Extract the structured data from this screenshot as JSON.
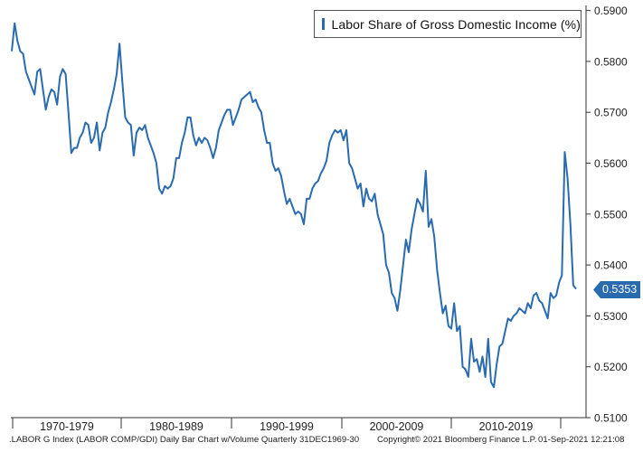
{
  "chart_data": {
    "type": "line",
    "series": [
      {
        "name": "Labor Share of Gross Domestic Income (%)",
        "color": "#2a6bb0",
        "values": [
          0.582,
          0.5875,
          0.584,
          0.582,
          0.5815,
          0.578,
          0.5765,
          0.575,
          0.5735,
          0.578,
          0.5785,
          0.5745,
          0.5705,
          0.573,
          0.5745,
          0.574,
          0.5715,
          0.577,
          0.5785,
          0.5775,
          0.57,
          0.562,
          0.563,
          0.563,
          0.565,
          0.566,
          0.568,
          0.5675,
          0.564,
          0.565,
          0.568,
          0.5625,
          0.566,
          0.567,
          0.57,
          0.572,
          0.5745,
          0.5775,
          0.5835,
          0.576,
          0.569,
          0.568,
          0.5675,
          0.5615,
          0.566,
          0.567,
          0.5665,
          0.5675,
          0.565,
          0.5635,
          0.562,
          0.56,
          0.555,
          0.554,
          0.5555,
          0.555,
          0.5555,
          0.557,
          0.561,
          0.561,
          0.564,
          0.566,
          0.569,
          0.569,
          0.5655,
          0.5635,
          0.565,
          0.564,
          0.565,
          0.5645,
          0.563,
          0.561,
          0.563,
          0.5665,
          0.568,
          0.5695,
          0.5705,
          0.5705,
          0.5675,
          0.569,
          0.5705,
          0.5725,
          0.573,
          0.5735,
          0.574,
          0.572,
          0.5725,
          0.571,
          0.57,
          0.5665,
          0.564,
          0.564,
          0.56,
          0.5585,
          0.559,
          0.5575,
          0.5545,
          0.552,
          0.553,
          0.5515,
          0.55,
          0.5505,
          0.55,
          0.548,
          0.553,
          0.553,
          0.555,
          0.556,
          0.5565,
          0.558,
          0.559,
          0.5605,
          0.564,
          0.5655,
          0.5665,
          0.566,
          0.5665,
          0.5645,
          0.5665,
          0.56,
          0.559,
          0.557,
          0.555,
          0.556,
          0.5515,
          0.555,
          0.553,
          0.5525,
          0.554,
          0.55,
          0.548,
          0.546,
          0.54,
          0.5385,
          0.5345,
          0.5335,
          0.531,
          0.535,
          0.54,
          0.545,
          0.5425,
          0.547,
          0.55,
          0.553,
          0.552,
          0.5505,
          0.5585,
          0.5475,
          0.549,
          0.5455,
          0.539,
          0.5345,
          0.5305,
          0.532,
          0.528,
          0.5275,
          0.5325,
          0.527,
          0.528,
          0.52,
          0.5195,
          0.518,
          0.5255,
          0.521,
          0.5215,
          0.519,
          0.522,
          0.518,
          0.5255,
          0.517,
          0.516,
          0.5205,
          0.524,
          0.5245,
          0.527,
          0.5295,
          0.529,
          0.53,
          0.5305,
          0.5315,
          0.531,
          0.5305,
          0.5325,
          0.5315,
          0.534,
          0.5345,
          0.533,
          0.5325,
          0.531,
          0.5295,
          0.5345,
          0.5335,
          0.534,
          0.5365,
          0.538,
          0.5622,
          0.557,
          0.548,
          0.536,
          0.5353
        ]
      }
    ],
    "x_start": "1969-12-31",
    "x_frequency": "quarterly",
    "xlabel": "",
    "ylabel": "",
    "ylim": [
      0.51,
      0.591
    ],
    "x_ticks": [
      "1970-1979",
      "1980-1989",
      "1990-1999",
      "2000-2009",
      "2010-2019"
    ],
    "y_ticks": [
      "0.5900",
      "0.5800",
      "0.5700",
      "0.5600",
      "0.5500",
      "0.5400",
      "0.5300",
      "0.5200",
      "0.5100"
    ],
    "y_tick_values": [
      0.59,
      0.58,
      0.57,
      0.56,
      0.55,
      0.54,
      0.53,
      0.52,
      0.51
    ],
    "last_value": 0.5353,
    "last_value_label": "0.5353",
    "grid": false,
    "legend_placement": "top-right",
    "axis_side": "right"
  },
  "legend": {
    "label": "Labor Share of Gross Domestic Income (%)"
  },
  "footer": {
    "left": ".LABOR G Index (LABOR COMP/GDI) Daily Bar Chart w/Volume  Quarterly 31DEC1969-30",
    "middle": "Copyright© 2021 Bloomberg Finance L.P.",
    "right": "01-Sep-2021 12:21:08"
  }
}
